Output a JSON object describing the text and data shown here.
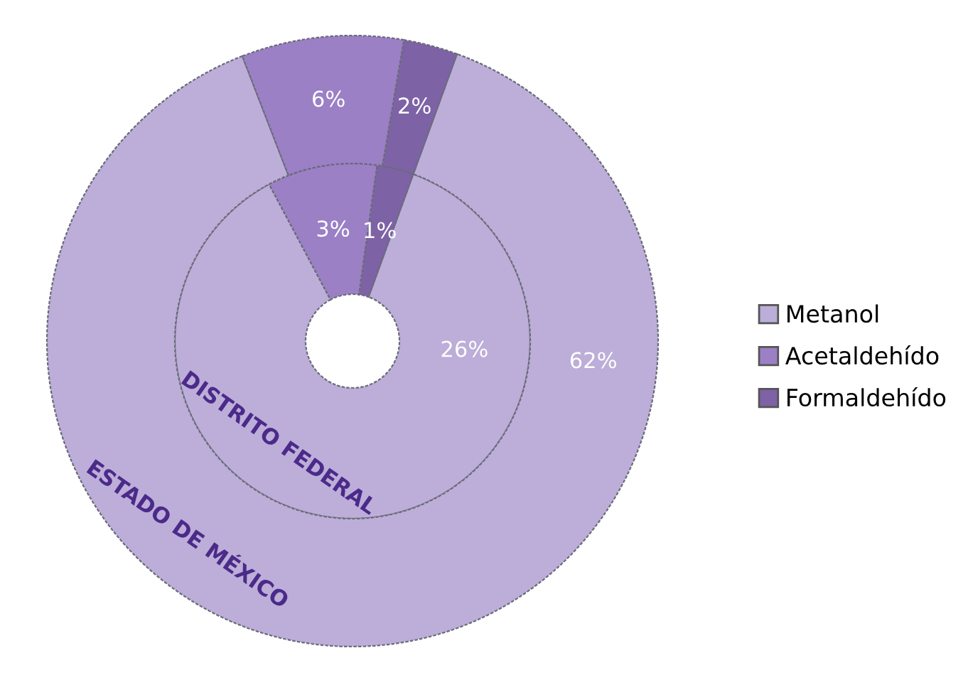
{
  "chart_data": {
    "type": "donut",
    "categories": [
      "Metanol",
      "Acetaldehído",
      "Formaldehído"
    ],
    "colors": [
      "#bcaed8",
      "#9b80c6",
      "#7e62a6"
    ],
    "legend": "right",
    "series": [
      {
        "name": "DISTRITO FEDERAL",
        "values": [
          26,
          3,
          1
        ],
        "value_labels": [
          "26%",
          "3%",
          "1%"
        ]
      },
      {
        "name": "ESTADO DE MÉXICO",
        "values": [
          62,
          6,
          2
        ],
        "value_labels": [
          "62%",
          "6%",
          "2%"
        ]
      }
    ]
  }
}
